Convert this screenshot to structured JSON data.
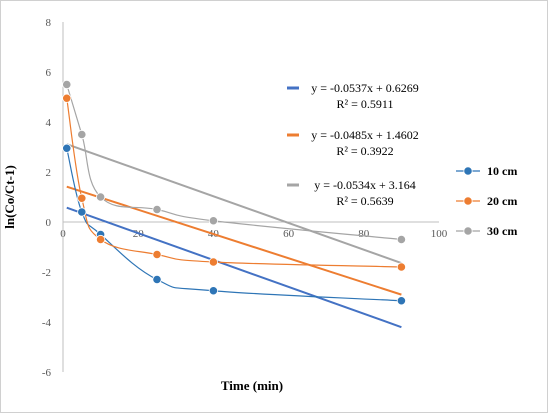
{
  "chart_data": {
    "type": "scatter",
    "xlabel": "Time (min)",
    "ylabel": "ln(Co/Ct-1)",
    "xlim": [
      0,
      100
    ],
    "ylim": [
      -6,
      8
    ],
    "x_ticks": [
      "0",
      "20",
      "40",
      "60",
      "80",
      "100"
    ],
    "y_ticks": [
      "-6",
      "-4",
      "-2",
      "0",
      "2",
      "4",
      "6",
      "8"
    ],
    "grid": false,
    "legend_position": "right",
    "series": [
      {
        "name": "10 cm",
        "color": "#2e75b6",
        "x": [
          1,
          5,
          10,
          25,
          40,
          90
        ],
        "y": [
          2.95,
          0.4,
          -0.5,
          -2.3,
          -2.75,
          -3.15
        ],
        "trendline": {
          "slope": -0.0537,
          "intercept": 0.6269,
          "x_range": [
            1,
            90
          ],
          "color": "#4472c4",
          "equation": "y = -0.0537x + 0.6269",
          "r2": "R² = 0.5911"
        }
      },
      {
        "name": "20 cm",
        "color": "#ed7d31",
        "x": [
          1,
          5,
          10,
          25,
          40,
          90
        ],
        "y": [
          4.95,
          0.95,
          -0.7,
          -1.3,
          -1.6,
          -1.8
        ],
        "trendline": {
          "slope": -0.0485,
          "intercept": 1.4602,
          "x_range": [
            1,
            90
          ],
          "color": "#ed7d31",
          "equation": "y = -0.0485x + 1.4602",
          "r2": "R² = 0.3922"
        }
      },
      {
        "name": "30 cm",
        "color": "#a5a5a5",
        "x": [
          1,
          5,
          10,
          25,
          40,
          90
        ],
        "y": [
          5.5,
          3.5,
          1.0,
          0.5,
          0.05,
          -0.7
        ],
        "trendline": {
          "slope": -0.0534,
          "intercept": 3.164,
          "x_range": [
            1,
            90
          ],
          "color": "#a5a5a5",
          "equation": "y = -0.0534x + 3.164",
          "r2": "R² = 0.5639"
        }
      }
    ]
  }
}
